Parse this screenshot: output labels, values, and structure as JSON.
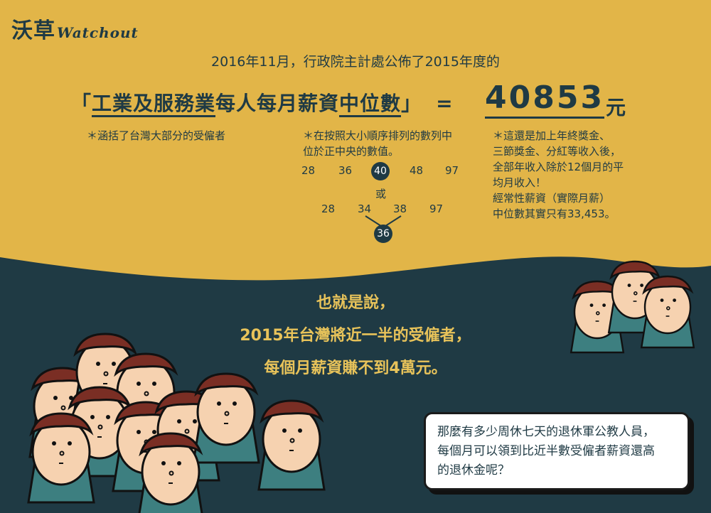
{
  "logo": {
    "main": "沃草",
    "sub": "Watchout"
  },
  "intro": "2016年11月，行政院主計處公佈了2015年度的",
  "headline": {
    "bracket_open": "「",
    "part1": "工業及服務業",
    "part2": "每人每月薪資",
    "part3": "中位數",
    "bracket_close": "」",
    "equals": "=",
    "value": "40853",
    "unit": "元"
  },
  "notes": {
    "left": "＊涵括了台灣大部分的受僱者",
    "middle_line1": "＊在按照大小順序排列的數列中",
    "middle_line2": "位於正中央的數值。",
    "right_lines": [
      "＊這還是加上年終獎金、",
      "三節獎金、分紅等收入後，",
      "全部年收入除於12個月的平",
      "均月收入！",
      "經常性薪資（實際月薪）",
      "中位數其實只有33,453。"
    ]
  },
  "example": {
    "row1": [
      "28",
      "36",
      "40",
      "48",
      "97"
    ],
    "or": "或",
    "row2": [
      "28",
      "34",
      "38",
      "97"
    ],
    "median2": "36"
  },
  "conclusion": {
    "line1": "也就是說，",
    "line2": "2015年台灣將近一半的受僱者，",
    "line3": "每個月薪資賺不到4萬元。"
  },
  "bubble": {
    "line1": "那麼有多少周休七天的退休軍公教人員，",
    "line2": "每個月可以領到比近半數受僱者薪資還高",
    "line3": "的退休金呢？"
  },
  "colors": {
    "background_top": "#e2b548",
    "background_bottom": "#1f3a44",
    "accent_text": "#e8c35a",
    "character_hair": "#7a2e24",
    "character_skin": "#f6d2b0",
    "character_shirt": "#3d7f80"
  }
}
